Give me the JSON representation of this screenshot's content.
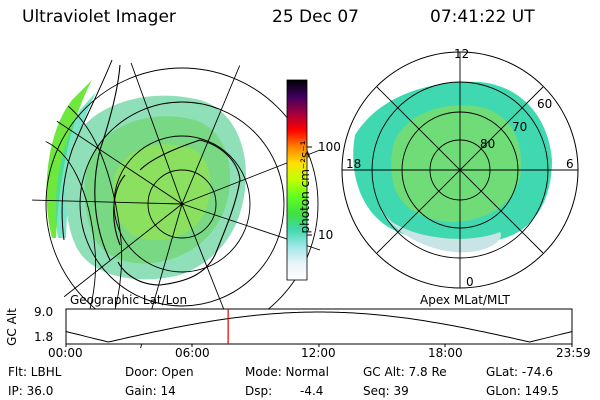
{
  "header": {
    "instrument": "Ultraviolet Imager",
    "date": "25 Dec 07",
    "time": "07:41:22 UT"
  },
  "panels": {
    "geo_label": "Geographic Lat/Lon",
    "apex_label": "Apex MLat/MLT"
  },
  "colorbar": {
    "unit_label": "photon cm⁻²s⁻¹",
    "ticks": [
      "100",
      "10"
    ],
    "stops": [
      "#000000",
      "#400060",
      "#a00040",
      "#ff0000",
      "#ff8000",
      "#ffe000",
      "#c0ff00",
      "#60ff20",
      "#40e040",
      "#40d8b0",
      "#a0e8e8",
      "#e8f4f8",
      "#ffffff"
    ]
  },
  "apex_grid": {
    "mlt_labels": [
      "12",
      "18",
      "6",
      "0"
    ],
    "lat_labels": [
      "80",
      "70",
      "60"
    ]
  },
  "altitude_plot": {
    "ylabel": "GC Alt",
    "ytick_top": "9.0",
    "ytick_bottom": "1.8",
    "xticks": [
      "00:00",
      "06:00",
      "12:00",
      "18:00",
      "23:59"
    ],
    "marker_time_hours": 7.69
  },
  "info": {
    "filter": "Flt: LBHL",
    "door": "Door: Open",
    "mode": "Mode: Normal",
    "gc_alt": "GC Alt: 7.8 Re",
    "glat": "GLat: -74.6",
    "ip": "IP: 36.0",
    "gain": "Gain: 14",
    "dsp_label": "Dsp:",
    "dsp_value": "-4.4",
    "seq": "Seq: 39",
    "glon": "GLon: 149.5"
  }
}
